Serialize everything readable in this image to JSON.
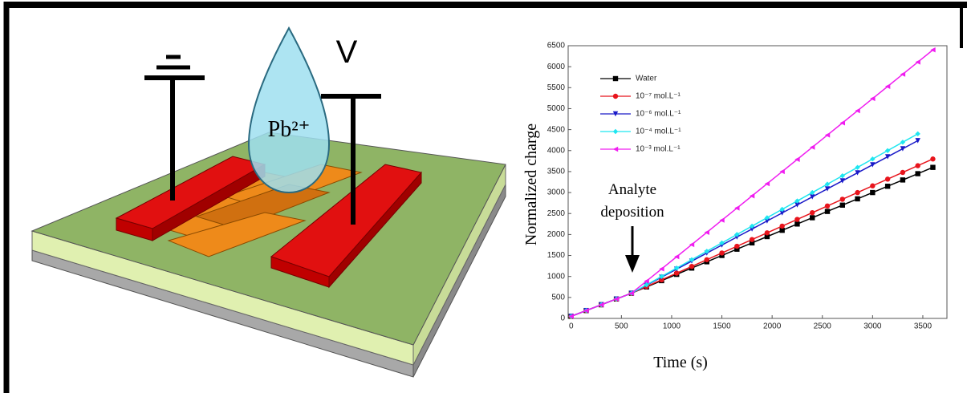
{
  "diagram": {
    "voltage_label": "V",
    "drop_label": "Pb²⁺"
  },
  "chart_data": {
    "type": "line",
    "xlabel": "Time (s)",
    "ylabel": "Normalized charge",
    "annotation": [
      "Analyte",
      "deposition"
    ],
    "x": [
      0,
      150,
      300,
      450,
      600,
      750,
      900,
      1050,
      1200,
      1350,
      1500,
      1650,
      1800,
      1950,
      2100,
      2250,
      2400,
      2550,
      2700,
      2850,
      3000,
      3150,
      3300,
      3450,
      3600
    ],
    "series": [
      {
        "name": "Water",
        "color": "#000000",
        "values": [
          50,
          188,
          325,
          463,
          600,
          750,
          900,
          1050,
          1200,
          1350,
          1500,
          1650,
          1800,
          1950,
          2100,
          2250,
          2400,
          2550,
          2700,
          2850,
          3000,
          3150,
          3300,
          3450,
          3600
        ]
      },
      {
        "name": "10⁻⁷ mol.L⁻¹",
        "color": "#e8141c",
        "values": [
          50,
          188,
          325,
          463,
          600,
          760,
          920,
          1080,
          1240,
          1400,
          1560,
          1720,
          1880,
          2040,
          2200,
          2360,
          2520,
          2680,
          2840,
          3000,
          3160,
          3320,
          3480,
          3640,
          3800
        ]
      },
      {
        "name": "10⁻⁶ mol.L⁻¹",
        "color": "#1a1ac8",
        "values": [
          50,
          188,
          325,
          463,
          600,
          791,
          983,
          1174,
          1366,
          1557,
          1748,
          1940,
          2131,
          2323,
          2514,
          2705,
          2897,
          3088,
          3280,
          3471,
          3662,
          3854,
          4045,
          4237,
          null
        ]
      },
      {
        "name": "10⁻⁴ mol.L⁻¹",
        "color": "#1ee6f0",
        "values": [
          50,
          188,
          325,
          463,
          600,
          800,
          1000,
          1200,
          1400,
          1600,
          1800,
          2000,
          2200,
          2400,
          2600,
          2800,
          3000,
          3200,
          3400,
          3600,
          3800,
          4000,
          4200,
          4400,
          null
        ]
      },
      {
        "name": "10⁻³ mol.L⁻¹",
        "color": "#f01ef0",
        "values": [
          50,
          188,
          325,
          463,
          600,
          890,
          1180,
          1470,
          1760,
          2050,
          2340,
          2630,
          2920,
          3210,
          3500,
          3790,
          4080,
          4370,
          4660,
          4950,
          5240,
          5530,
          5820,
          6110,
          6400
        ]
      }
    ],
    "xlim": [
      -30,
      3740
    ],
    "xticks": [
      0,
      500,
      1000,
      1500,
      2000,
      2500,
      3000,
      3500
    ],
    "ylim": [
      0,
      6500
    ],
    "yticks": [
      0,
      500,
      1000,
      1500,
      2000,
      2500,
      3000,
      3500,
      4000,
      4500,
      5000,
      5500,
      6000,
      6500
    ]
  }
}
